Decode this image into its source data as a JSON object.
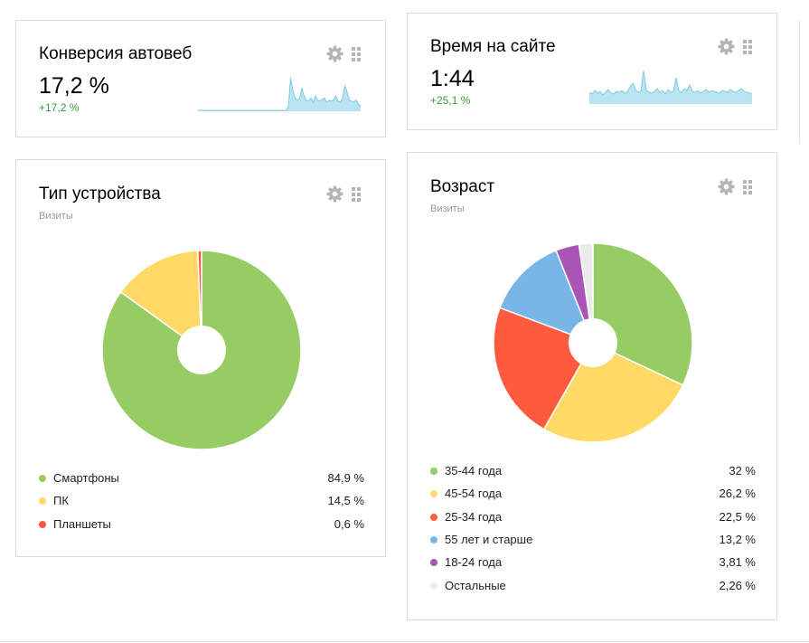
{
  "widgets": {
    "conversion": {
      "title": "Конверсия автовеб",
      "value": "17,2 %",
      "delta": "+17,2 %",
      "sparkline": [
        0,
        0,
        0,
        0,
        0,
        0,
        0,
        0,
        0,
        0,
        0,
        0,
        0,
        0,
        0,
        0,
        0,
        0,
        0,
        0,
        0,
        0,
        0,
        0,
        0,
        0,
        0,
        0,
        0,
        0,
        0,
        0,
        0,
        0,
        0,
        0,
        0,
        0,
        0,
        0,
        3,
        32,
        20,
        12,
        10,
        12,
        22,
        14,
        9,
        10,
        12,
        8,
        14,
        10,
        9,
        11,
        12,
        8,
        10,
        9,
        10,
        14,
        9,
        8,
        12,
        24,
        18,
        10,
        9,
        8,
        10,
        6,
        4
      ],
      "color": "#7fcbe3"
    },
    "time_on_site": {
      "title": "Время на сайте",
      "value": "1:44",
      "delta": "+25,1 %",
      "sparkline": [
        12,
        10,
        14,
        11,
        13,
        9,
        12,
        15,
        11,
        10,
        13,
        12,
        14,
        11,
        12,
        18,
        22,
        15,
        12,
        13,
        36,
        14,
        12,
        11,
        13,
        16,
        12,
        14,
        10,
        15,
        12,
        13,
        28,
        14,
        12,
        16,
        14,
        20,
        13,
        12,
        14,
        11,
        13,
        15,
        12,
        14,
        13,
        12,
        11,
        14,
        13,
        12,
        15,
        13,
        12,
        14,
        16,
        13,
        12,
        11,
        10
      ],
      "color": "#7fcbe3"
    },
    "device": {
      "title": "Тип устройства",
      "subtitle": "Визиты",
      "chart_data": {
        "type": "pie",
        "categories": [
          "Смартфоны",
          "ПК",
          "Планшеты"
        ],
        "values": [
          84.9,
          14.5,
          0.6
        ],
        "labels": [
          "84,9 %",
          "14,5 %",
          "0,6 %"
        ],
        "colors": [
          "#97cc64",
          "#ffd966",
          "#f9563a"
        ]
      }
    },
    "age": {
      "title": "Возраст",
      "subtitle": "Визиты",
      "chart_data": {
        "type": "pie",
        "categories": [
          "35-44 года",
          "45-54 года",
          "25-34 года",
          "55 лет и старше",
          "18-24 года",
          "Остальные"
        ],
        "values": [
          32,
          26.2,
          22.5,
          13.2,
          3.81,
          2.26
        ],
        "labels": [
          "32 %",
          "26,2 %",
          "22,5 %",
          "13,2 %",
          "3,81 %",
          "2,26 %"
        ],
        "colors": [
          "#97cc64",
          "#ffd966",
          "#fd5a3e",
          "#77b6e7",
          "#a955b8",
          "#ebebeb"
        ]
      }
    }
  },
  "icons": {
    "settings": "gear-icon",
    "drag": "drag-handle-icon"
  }
}
